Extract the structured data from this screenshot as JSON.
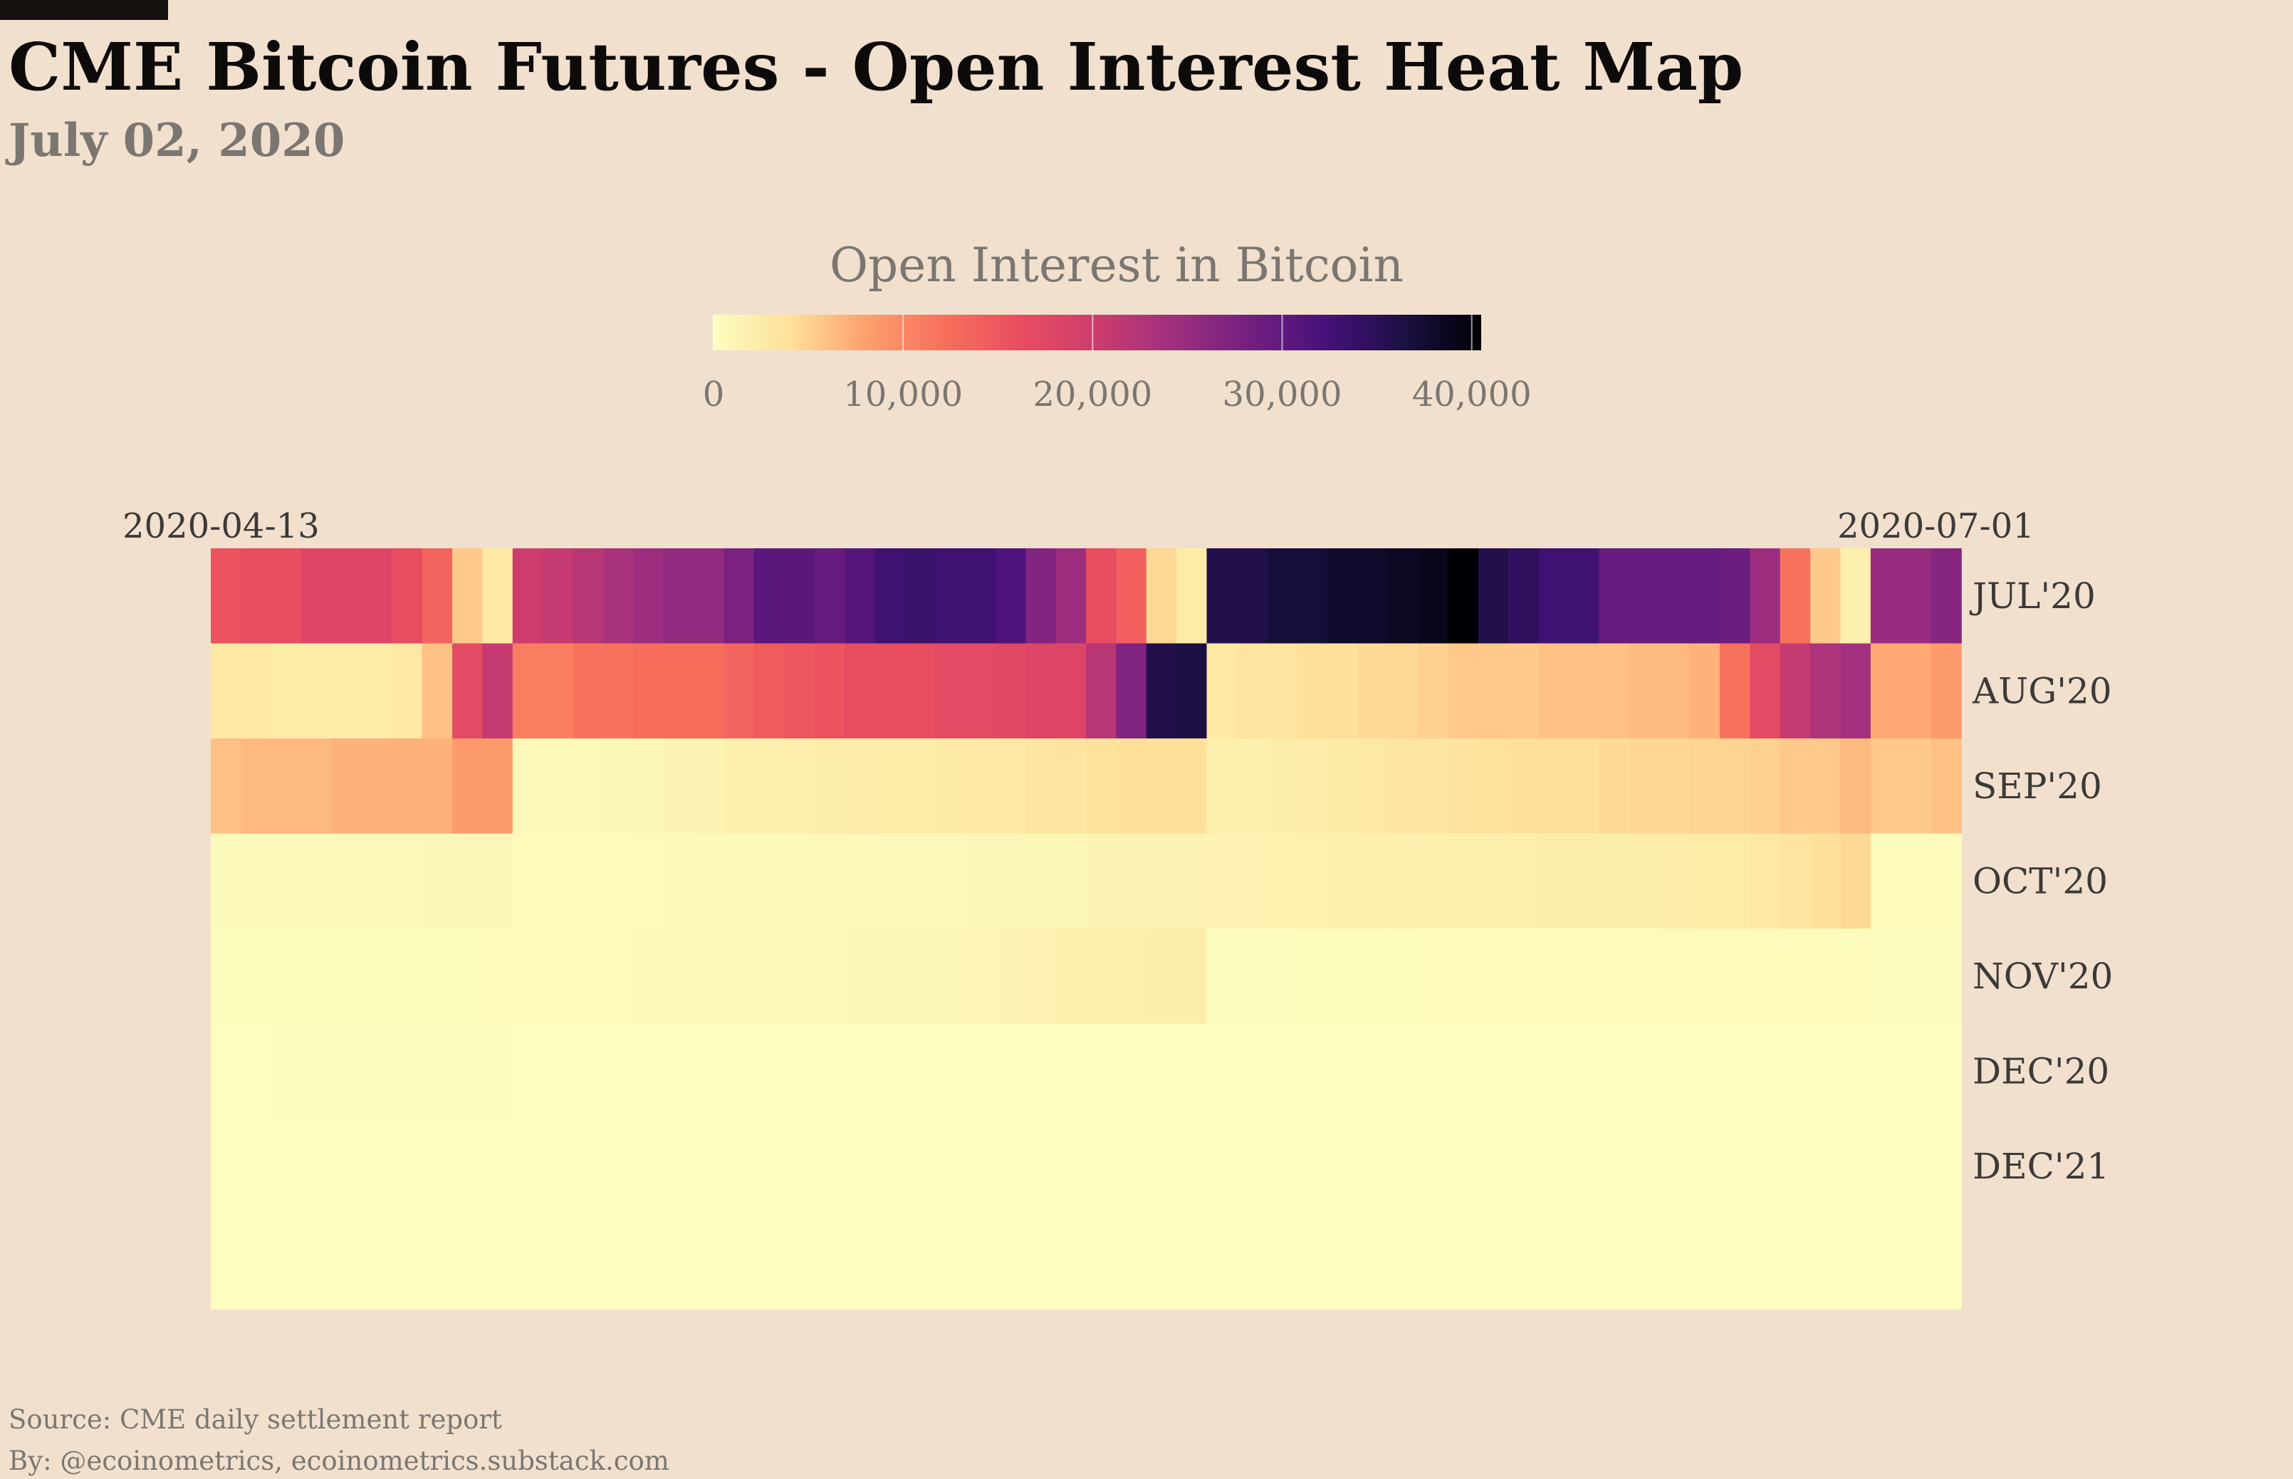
{
  "title": "CME Bitcoin Futures - Open Interest Heat Map",
  "subtitle": "July 02, 2020",
  "source": "Source: CME daily settlement report",
  "byline": "By: @ecoinometrics, ecoinometrics.substack.com",
  "chart_data": {
    "type": "heatmap",
    "colorbar": {
      "title": "Open Interest in Bitcoin",
      "min": 0,
      "max": 40500,
      "ticks": [
        0,
        10000,
        20000,
        30000,
        40000
      ],
      "tick_labels": [
        "0",
        "10,000",
        "20,000",
        "30,000",
        "40,000"
      ],
      "colorscale": "magma (reversed)"
    },
    "x_start_label": "2020-04-13",
    "x_end_label": "2020-07-01",
    "rows": [
      "JUL'20",
      "AUG'20",
      "SEP'20",
      "OCT'20",
      "NOV'20",
      "DEC'20",
      "DEC'21",
      ""
    ],
    "x": [
      "2020-04-13",
      "2020-04-14",
      "2020-04-15",
      "2020-04-16",
      "2020-04-17",
      "2020-04-20",
      "2020-04-21",
      "2020-04-22",
      "2020-04-23",
      "2020-04-24",
      "2020-04-27",
      "2020-04-28",
      "2020-04-29",
      "2020-04-30",
      "2020-05-01",
      "2020-05-04",
      "2020-05-05",
      "2020-05-06",
      "2020-05-07",
      "2020-05-08",
      "2020-05-11",
      "2020-05-12",
      "2020-05-13",
      "2020-05-14",
      "2020-05-15",
      "2020-05-18",
      "2020-05-19",
      "2020-05-20",
      "2020-05-21",
      "2020-05-22",
      "2020-05-25",
      "2020-05-26",
      "2020-05-27",
      "2020-05-28",
      "2020-05-29",
      "2020-06-01",
      "2020-06-02",
      "2020-06-03",
      "2020-06-04",
      "2020-06-05",
      "2020-06-08",
      "2020-06-09",
      "2020-06-10",
      "2020-06-11",
      "2020-06-12",
      "2020-06-15",
      "2020-06-16",
      "2020-06-17",
      "2020-06-18",
      "2020-06-19",
      "2020-06-22",
      "2020-06-23",
      "2020-06-24",
      "2020-06-25",
      "2020-06-26",
      "2020-06-29",
      "2020-06-30",
      "2020-07-01"
    ],
    "values": [
      [
        15500,
        16500,
        16500,
        18000,
        18000,
        18000,
        16500,
        13500,
        5500,
        3000,
        20000,
        21000,
        22000,
        23500,
        24500,
        25500,
        25500,
        27500,
        30500,
        30500,
        29500,
        31000,
        33000,
        33500,
        33000,
        33000,
        31500,
        27000,
        24500,
        16500,
        14000,
        4500,
        2500,
        36000,
        36000,
        37000,
        37000,
        38000,
        38000,
        38500,
        39000,
        40500,
        36000,
        34500,
        33000,
        33000,
        29500,
        29500,
        29500,
        29500,
        29000,
        24500,
        12000,
        5500,
        2000,
        25000,
        25000,
        26500
      ],
      [
        3000,
        3000,
        2500,
        2500,
        2500,
        2500,
        3000,
        6000,
        17000,
        21000,
        11000,
        11000,
        12000,
        12000,
        12500,
        12500,
        12500,
        13500,
        14500,
        15000,
        15500,
        16500,
        16500,
        16500,
        17000,
        17000,
        17500,
        18000,
        18000,
        22000,
        27000,
        36000,
        36500,
        3000,
        3500,
        3500,
        4000,
        4000,
        4500,
        4500,
        5000,
        5500,
        5500,
        5500,
        6000,
        6000,
        6000,
        6500,
        6500,
        7000,
        12000,
        17000,
        21000,
        23000,
        24000,
        7500,
        7500,
        8500
      ],
      [
        6000,
        6500,
        6500,
        6500,
        7000,
        7000,
        7000,
        7000,
        8500,
        8500,
        700,
        700,
        700,
        800,
        1000,
        1200,
        1400,
        1800,
        2000,
        2100,
        2300,
        2400,
        2500,
        2500,
        2700,
        2800,
        3000,
        3200,
        3500,
        3800,
        4000,
        4000,
        4000,
        1800,
        2000,
        2200,
        2400,
        2600,
        3000,
        3200,
        3400,
        3600,
        3800,
        4000,
        4200,
        4200,
        4400,
        4600,
        4600,
        4800,
        4800,
        5000,
        5500,
        5500,
        6500,
        5500,
        5500,
        6000
      ],
      [
        400,
        500,
        500,
        500,
        600,
        700,
        700,
        800,
        800,
        800,
        300,
        300,
        300,
        300,
        300,
        400,
        400,
        400,
        400,
        500,
        500,
        500,
        500,
        600,
        700,
        800,
        800,
        900,
        1000,
        1200,
        1300,
        1300,
        1300,
        1500,
        1500,
        1600,
        1700,
        1800,
        1800,
        1900,
        1900,
        2000,
        2000,
        2100,
        2200,
        2200,
        2300,
        2300,
        2400,
        2500,
        2500,
        3000,
        3500,
        4000,
        4500,
        300,
        300,
        300
      ],
      [
        200,
        200,
        200,
        200,
        200,
        200,
        200,
        200,
        200,
        300,
        300,
        300,
        300,
        300,
        400,
        400,
        400,
        500,
        500,
        700,
        700,
        800,
        900,
        900,
        1000,
        1100,
        1200,
        1500,
        1800,
        2000,
        2100,
        2200,
        2200,
        100,
        100,
        100,
        200,
        200,
        200,
        200,
        300,
        300,
        300,
        300,
        300,
        300,
        300,
        300,
        300,
        300,
        300,
        300,
        300,
        300,
        300,
        100,
        100,
        100
      ],
      [
        50,
        50,
        100,
        100,
        100,
        100,
        100,
        100,
        100,
        100,
        50,
        50,
        50,
        50,
        50,
        50,
        50,
        50,
        50,
        50,
        50,
        50,
        50,
        50,
        50,
        50,
        50,
        50,
        50,
        50,
        50,
        50,
        50,
        50,
        50,
        50,
        50,
        50,
        50,
        50,
        50,
        50,
        50,
        50,
        50,
        50,
        50,
        50,
        50,
        50,
        50,
        50,
        50,
        50,
        50,
        50,
        50,
        50
      ],
      [
        0,
        0,
        0,
        0,
        0,
        0,
        0,
        0,
        0,
        0,
        0,
        0,
        0,
        0,
        0,
        0,
        0,
        0,
        0,
        0,
        0,
        0,
        0,
        0,
        0,
        0,
        0,
        0,
        0,
        0,
        0,
        0,
        0,
        0,
        0,
        0,
        0,
        0,
        0,
        0,
        0,
        0,
        0,
        0,
        0,
        0,
        0,
        0,
        0,
        0,
        0,
        0,
        0,
        0,
        0,
        0,
        0,
        0
      ],
      [
        0,
        0,
        0,
        0,
        0,
        0,
        0,
        0,
        0,
        0,
        0,
        0,
        0,
        0,
        0,
        0,
        0,
        0,
        0,
        0,
        0,
        0,
        0,
        0,
        0,
        0,
        0,
        0,
        0,
        0,
        0,
        0,
        0,
        0,
        0,
        0,
        0,
        0,
        0,
        0,
        0,
        0,
        0,
        0,
        0,
        0,
        0,
        0,
        0,
        0,
        0,
        0,
        0,
        0,
        0,
        0,
        0,
        0
      ]
    ]
  }
}
